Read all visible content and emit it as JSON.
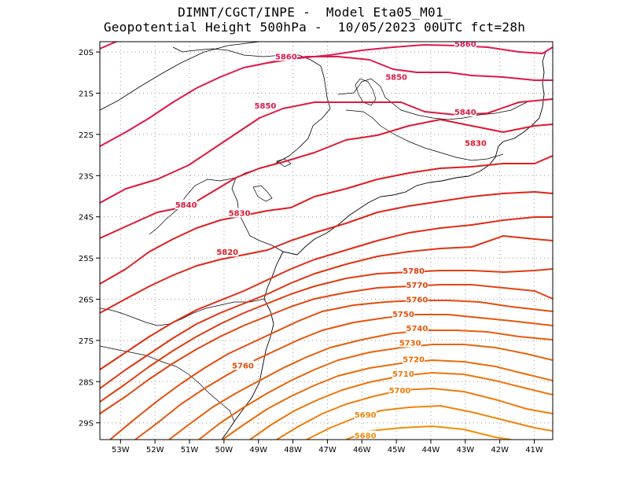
{
  "title_line1": "DIMNT/CGCT/INPE -  Model Eta05_M01_",
  "title_line2": "Geopotential Height 500hPa -  10/05/2023 00UTC fct=28h",
  "lon_ticks": [
    "53W",
    "52W",
    "51W",
    "50W",
    "49W",
    "48W",
    "47W",
    "46W",
    "45W",
    "44W",
    "43W",
    "42W",
    "41W"
  ],
  "lat_ticks": [
    "20S",
    "21S",
    "22S",
    "23S",
    "24S",
    "25S",
    "26S",
    "27S",
    "28S",
    "29S"
  ],
  "contour_colors": {
    "5860": "#e01850",
    "5850": "#e01848",
    "5840": "#e0183c",
    "5830": "#e01830",
    "5820": "#e01c20",
    "5810": "#e02418",
    "5800": "#e02c14",
    "5790": "#e03410",
    "5780": "#e03c10",
    "5770": "#e2440e",
    "5760": "#e44c0c",
    "5750": "#e6540c",
    "5740": "#e85c0a",
    "5730": "#ea640a",
    "5720": "#ec6c08",
    "5710": "#ee7408",
    "5700": "#f07c08",
    "5690": "#f28408",
    "5680": "#f48c08"
  },
  "contour_labels": [
    {
      "text": "5860",
      "lon": -48.2,
      "lat": -20.1,
      "level": "5860"
    },
    {
      "text": "5860",
      "lon": -43.0,
      "lat": -19.8,
      "level": "5860"
    },
    {
      "text": "5850",
      "lon": -45.0,
      "lat": -20.6,
      "level": "5850"
    },
    {
      "text": "5850",
      "lon": -48.8,
      "lat": -21.3,
      "level": "5850"
    },
    {
      "text": "5840",
      "lon": -43.0,
      "lat": -21.45,
      "level": "5840"
    },
    {
      "text": "5840",
      "lon": -51.1,
      "lat": -23.7,
      "level": "5840"
    },
    {
      "text": "5830",
      "lon": -42.7,
      "lat": -22.2,
      "level": "5830"
    },
    {
      "text": "5830",
      "lon": -49.55,
      "lat": -23.9,
      "level": "5830"
    },
    {
      "text": "5820",
      "lon": -49.9,
      "lat": -24.85,
      "level": "5820"
    },
    {
      "text": "5780",
      "lon": -44.5,
      "lat": -25.3,
      "level": "5780"
    },
    {
      "text": "5770",
      "lon": -44.4,
      "lat": -25.65,
      "level": "5770"
    },
    {
      "text": "5760",
      "lon": -44.4,
      "lat": -26.0,
      "level": "5760"
    },
    {
      "text": "5760",
      "lon": -49.45,
      "lat": -27.6,
      "level": "5760"
    },
    {
      "text": "5750",
      "lon": -44.8,
      "lat": -26.35,
      "level": "5750"
    },
    {
      "text": "5740",
      "lon": -44.4,
      "lat": -26.7,
      "level": "5740"
    },
    {
      "text": "5730",
      "lon": -44.6,
      "lat": -27.05,
      "level": "5730"
    },
    {
      "text": "5720",
      "lon": -44.5,
      "lat": -27.45,
      "level": "5720"
    },
    {
      "text": "5710",
      "lon": -44.8,
      "lat": -27.8,
      "level": "5710"
    },
    {
      "text": "5700",
      "lon": -44.9,
      "lat": -28.2,
      "level": "5700"
    },
    {
      "text": "5690",
      "lon": -45.9,
      "lat": -28.8,
      "level": "5690"
    },
    {
      "text": "5680",
      "lon": -45.9,
      "lat": -29.3,
      "level": "5680"
    }
  ]
}
